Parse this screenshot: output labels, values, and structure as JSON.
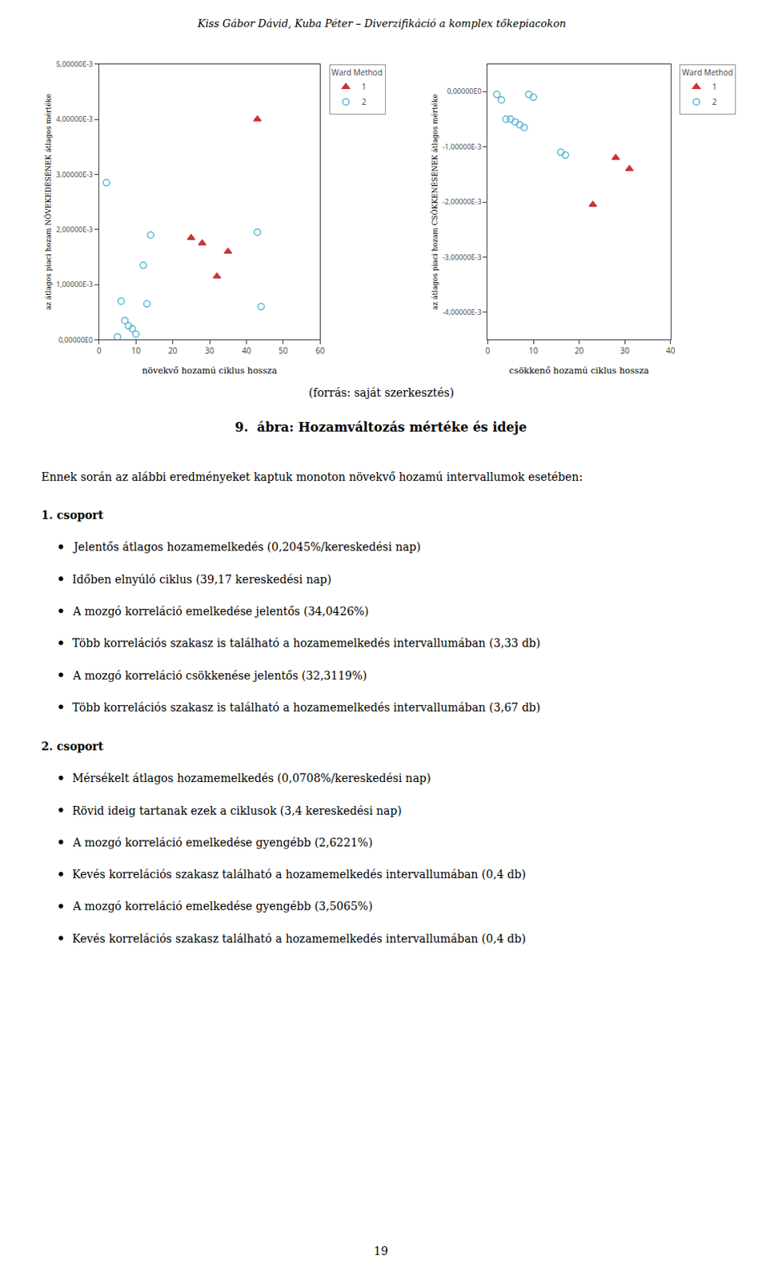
{
  "header": "Kiss Gábor Dávid, Kuba Péter – Diverzifikáció a komplex tőkepiacokon",
  "source": "(forrás: saját szerkesztés)",
  "title": "9.  ábra: Hozamváltozás mértéke és ideje",
  "text": "Ennek során az alábbi eredményeket kaptuk monoton növekvő hozamú intervallumok esetében:",
  "groups": [
    {
      "header": "1. csoport",
      "bullets": [
        "Jelentős átlagos hozamemelkedés (0,2045%/kereskedési nap)",
        "Időben elnyúló ciklus (39,17 kereskedési nap)",
        "A mozgó korreláció emelkedése jelentős (34,0426%)",
        "Több korrelációs szakasz is található a hozamemelkedés intervallumában (3,33 db)",
        "A mozgó korreláció csökkenése jelentős (32,3119%)",
        "Több korrelációs szakasz is található a hozamemelkedés intervallumában (3,67 db)"
      ]
    },
    {
      "header": "2. csoport",
      "bullets": [
        "Mérsékelt átlagos hozamemelkedés (0,0708%/kereskedési nap)",
        "Rövid ideig tartanak ezek a ciklusok (3,4 kereskedési nap)",
        "A mozgó korreláció emelkedése gyengébb (2,6221%)",
        "Kevés korrelációs szakasz található a hozamemelkedés intervallumában (0,4 db)",
        "A mozgó korreláció emelkedése gyengébb (3,5065%)",
        "Kevés korrelációs szakasz található a hozamemelkedés intervallumában (0,4 db)"
      ]
    }
  ],
  "page_number": "19",
  "chart_data": [
    {
      "type": "scatter",
      "xlabel": "növekvő hozamú ciklus hossza",
      "ylabel": "az átlagos piaci hozam NÖVEKEDÉSÉNEK átlagos mértéke",
      "xlim": [
        0,
        60
      ],
      "ylim": [
        0.0,
        0.005
      ],
      "xticks": [
        0,
        10,
        20,
        30,
        40,
        50,
        60
      ],
      "yticks": [
        {
          "value": 0,
          "label": "0,00000E0"
        },
        {
          "value": 0.001,
          "label": "1,00000E-3"
        },
        {
          "value": 0.002,
          "label": "2,00000E-3"
        },
        {
          "value": 0.003,
          "label": "3,00000E-3"
        },
        {
          "value": 0.004,
          "label": "4,00000E-3"
        },
        {
          "value": 0.005,
          "label": "5,00000E-3"
        }
      ],
      "grid": false,
      "legend": "right",
      "legend_title": "Ward Method",
      "series": [
        {
          "name": "1",
          "color": "#CC3333",
          "marker": "triangle",
          "x": [
            25,
            28,
            32,
            35,
            43
          ],
          "values": [
            0.00185,
            0.00175,
            0.00115,
            0.0016,
            0.004
          ]
        },
        {
          "name": "2",
          "color": "#5BB8D4",
          "marker": "hollow_circle",
          "x": [
            2,
            5,
            6,
            7,
            8,
            9,
            10,
            12,
            13,
            14,
            43,
            44
          ],
          "values": [
            0.00285,
            5e-05,
            0.0007,
            0.00035,
            0.00025,
            0.0002,
            0.0001,
            0.00135,
            0.00065,
            0.0019,
            0.00195,
            0.0006
          ]
        }
      ]
    },
    {
      "type": "scatter",
      "xlabel": "csökkenő hozamú ciklus hossza",
      "ylabel": "az átlagos piaci hozam CSÖKKENÉSÉNEK átlagos mértéke",
      "xlim": [
        0,
        40
      ],
      "ylim": [
        -0.0045,
        0.0005
      ],
      "xticks": [
        0,
        10,
        20,
        30,
        40
      ],
      "yticks": [
        {
          "value": -0.004,
          "label": "-4,00000E-3"
        },
        {
          "value": -0.003,
          "label": "-3,00000E-3"
        },
        {
          "value": -0.002,
          "label": "-2,00000E-3"
        },
        {
          "value": -0.001,
          "label": "-1,00000E-3"
        },
        {
          "value": 0,
          "label": "0,00000E0"
        }
      ],
      "grid": false,
      "legend": "right",
      "legend_title": "Ward Method",
      "series": [
        {
          "name": "1",
          "color": "#CC3333",
          "marker": "triangle",
          "x": [
            23,
            28,
            31
          ],
          "values": [
            -0.00205,
            -0.0012,
            -0.0014
          ]
        },
        {
          "name": "2",
          "color": "#5BB8D4",
          "marker": "hollow_circle",
          "x": [
            2,
            3,
            4,
            5,
            6,
            7,
            8,
            9,
            10,
            16,
            17
          ],
          "values": [
            -5e-05,
            -0.00015,
            -0.0005,
            -0.0005,
            -0.00055,
            -0.0006,
            -0.00065,
            -5e-05,
            -0.0001,
            -0.0011,
            -0.00115
          ]
        }
      ]
    }
  ]
}
